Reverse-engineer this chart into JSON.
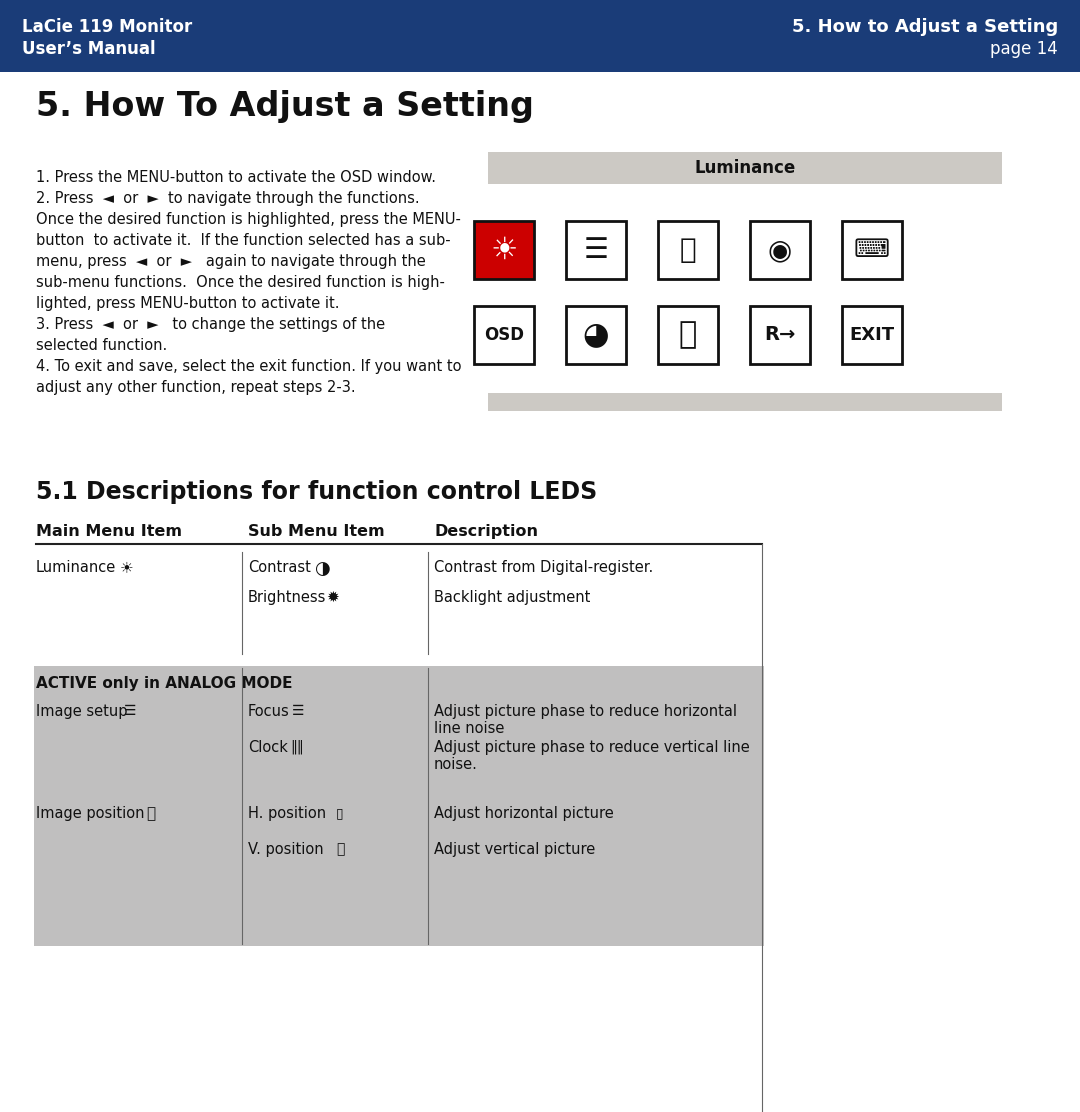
{
  "header_bg_color": "#1a3c78",
  "header_text_color": "#ffffff",
  "header_left_line1": "LaCie 119 Monitor",
  "header_left_line2": "User’s Manual",
  "header_right_line1": "5. How to Adjust a Setting",
  "header_right_line2": "page 14",
  "page_bg_color": "#ffffff",
  "section_title": "5. How To Adjust a Setting",
  "body_text": [
    "1. Press the MENU-button to activate the OSD window.",
    "2. Press  ◄  or  ►  to navigate through the functions.",
    "Once the desired function is highlighted, press the MENU-",
    "button  to activate it.  If the function selected has a sub-",
    "menu, press  ◄  or  ►   again to navigate through the",
    "sub-menu functions.  Once the desired function is high-",
    "lighted, press MENU-button to activate it.",
    "3. Press  ◄  or  ►   to change the settings of the",
    "selected function.",
    "4. To exit and save, select the exit function. If you want to",
    "adjust any other function, repeat steps 2-3."
  ],
  "osd_box_bg": "#ccc9c4",
  "osd_box_label": "Luminance",
  "osd_box2_bg": "#ccc9c4",
  "section2_title": "5.1 Descriptions for function control LEDS",
  "table_header_col1": "Main Menu Item",
  "table_header_col2": "Sub Menu Item",
  "table_header_col3": "Description",
  "gray_bg": "#c0bfbf",
  "table_line_color": "#222222"
}
